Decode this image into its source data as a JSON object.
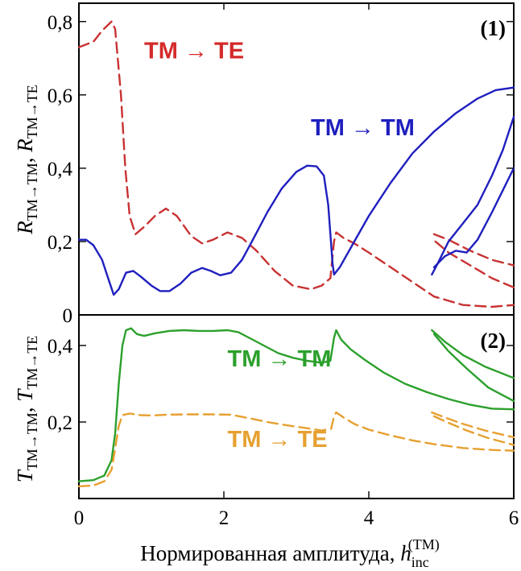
{
  "chart_data": [
    {
      "panel_label": "(1)",
      "type": "line",
      "ylabel": "R_TM→TM, R_TM→TE",
      "xlim": [
        0,
        6
      ],
      "ylim": [
        0,
        0.85
      ],
      "yticks": [
        "0",
        "0,2",
        "0,4",
        "0,6",
        "0,8"
      ],
      "ytick_values": [
        0,
        0.2,
        0.4,
        0.6,
        0.8
      ],
      "grid": false,
      "series": [
        {
          "name": "TM → TE",
          "color": "#c83232",
          "dash": "dashed",
          "label_pos": [
            0.9,
            0.7
          ],
          "label_color": "#d42a2a",
          "points": [
            [
              0.0,
              0.73
            ],
            [
              0.2,
              0.745
            ],
            [
              0.32,
              0.775
            ],
            [
              0.45,
              0.8
            ],
            [
              0.5,
              0.78
            ],
            [
              0.58,
              0.6
            ],
            [
              0.64,
              0.4
            ],
            [
              0.7,
              0.27
            ],
            [
              0.78,
              0.22
            ],
            [
              0.9,
              0.24
            ],
            [
              1.05,
              0.27
            ],
            [
              1.2,
              0.29
            ],
            [
              1.35,
              0.27
            ],
            [
              1.55,
              0.215
            ],
            [
              1.7,
              0.195
            ],
            [
              1.85,
              0.205
            ],
            [
              2.05,
              0.225
            ],
            [
              2.25,
              0.21
            ],
            [
              2.45,
              0.175
            ],
            [
              2.7,
              0.12
            ],
            [
              2.95,
              0.08
            ],
            [
              3.2,
              0.07
            ],
            [
              3.35,
              0.08
            ],
            [
              3.47,
              0.1
            ],
            [
              3.52,
              0.2
            ],
            [
              3.55,
              0.225
            ],
            [
              3.65,
              0.21
            ],
            [
              3.8,
              0.195
            ],
            [
              4.0,
              0.17
            ],
            [
              4.3,
              0.13
            ],
            [
              4.6,
              0.09
            ],
            [
              4.9,
              0.05
            ],
            [
              5.3,
              0.027
            ],
            [
              5.7,
              0.022
            ],
            [
              6.0,
              0.027
            ]
          ],
          "branches": [
            [
              [
                4.9,
                0.22
              ],
              [
                5.1,
                0.205
              ],
              [
                5.4,
                0.175
              ],
              [
                5.7,
                0.15
              ],
              [
                6.0,
                0.135
              ]
            ],
            [
              [
                4.92,
                0.2
              ],
              [
                5.1,
                0.17
              ],
              [
                5.4,
                0.135
              ],
              [
                5.7,
                0.1
              ],
              [
                6.0,
                0.075
              ]
            ]
          ]
        },
        {
          "name": "TM → TM",
          "color": "#1f1fbf",
          "dash": "solid",
          "label_pos": [
            3.2,
            0.49
          ],
          "label_color": "#1f1fbf",
          "points": [
            [
              0.0,
              0.205
            ],
            [
              0.1,
              0.205
            ],
            [
              0.2,
              0.19
            ],
            [
              0.32,
              0.15
            ],
            [
              0.42,
              0.09
            ],
            [
              0.48,
              0.055
            ],
            [
              0.55,
              0.07
            ],
            [
              0.65,
              0.115
            ],
            [
              0.75,
              0.12
            ],
            [
              0.85,
              0.105
            ],
            [
              1.0,
              0.08
            ],
            [
              1.12,
              0.065
            ],
            [
              1.25,
              0.065
            ],
            [
              1.4,
              0.085
            ],
            [
              1.55,
              0.115
            ],
            [
              1.7,
              0.128
            ],
            [
              1.82,
              0.12
            ],
            [
              1.95,
              0.108
            ],
            [
              2.1,
              0.115
            ],
            [
              2.25,
              0.15
            ],
            [
              2.4,
              0.205
            ],
            [
              2.6,
              0.28
            ],
            [
              2.8,
              0.345
            ],
            [
              3.0,
              0.39
            ],
            [
              3.15,
              0.407
            ],
            [
              3.28,
              0.405
            ],
            [
              3.38,
              0.38
            ],
            [
              3.44,
              0.3
            ],
            [
              3.47,
              0.22
            ],
            [
              3.5,
              0.14
            ],
            [
              3.52,
              0.11
            ],
            [
              3.6,
              0.13
            ],
            [
              3.8,
              0.2
            ],
            [
              4.0,
              0.27
            ],
            [
              4.3,
              0.36
            ],
            [
              4.6,
              0.44
            ],
            [
              4.9,
              0.5
            ],
            [
              5.2,
              0.55
            ],
            [
              5.5,
              0.59
            ],
            [
              5.75,
              0.613
            ],
            [
              6.0,
              0.62
            ]
          ],
          "branches": [
            [
              [
                4.87,
                0.11
              ],
              [
                4.95,
                0.14
              ],
              [
                5.1,
                0.2
              ],
              [
                5.3,
                0.25
              ],
              [
                5.5,
                0.3
              ],
              [
                5.7,
                0.38
              ],
              [
                5.85,
                0.45
              ],
              [
                6.0,
                0.54
              ]
            ],
            [
              [
                4.9,
                0.13
              ],
              [
                5.05,
                0.16
              ],
              [
                5.2,
                0.175
              ],
              [
                5.35,
                0.17
              ],
              [
                5.5,
                0.205
              ],
              [
                5.7,
                0.28
              ],
              [
                5.85,
                0.34
              ],
              [
                6.0,
                0.4
              ]
            ]
          ]
        }
      ]
    },
    {
      "panel_label": "(2)",
      "type": "line",
      "xlabel": "Нормированная амплитуда, h_inc^(TM)",
      "ylabel": "T_TM→TM, T_TM→TE",
      "xlim": [
        0,
        6
      ],
      "ylim": [
        0,
        0.48
      ],
      "xticks": [
        "0",
        "2",
        "4",
        "6"
      ],
      "xtick_values": [
        0,
        2,
        4,
        6
      ],
      "yticks": [
        "0,2",
        "0,4"
      ],
      "ytick_values": [
        0.2,
        0.4
      ],
      "grid": false,
      "series": [
        {
          "name": "TM → TM",
          "color": "#2ca02c",
          "dash": "solid",
          "label_pos": [
            2.05,
            0.345
          ],
          "label_color": "#2ca02c",
          "points": [
            [
              0.0,
              0.045
            ],
            [
              0.2,
              0.048
            ],
            [
              0.35,
              0.06
            ],
            [
              0.45,
              0.1
            ],
            [
              0.5,
              0.17
            ],
            [
              0.55,
              0.3
            ],
            [
              0.6,
              0.4
            ],
            [
              0.65,
              0.44
            ],
            [
              0.72,
              0.445
            ],
            [
              0.8,
              0.43
            ],
            [
              0.9,
              0.425
            ],
            [
              1.05,
              0.432
            ],
            [
              1.25,
              0.438
            ],
            [
              1.45,
              0.44
            ],
            [
              1.65,
              0.438
            ],
            [
              1.85,
              0.438
            ],
            [
              2.05,
              0.44
            ],
            [
              2.2,
              0.435
            ],
            [
              2.35,
              0.42
            ],
            [
              2.55,
              0.4
            ],
            [
              2.75,
              0.38
            ],
            [
              2.95,
              0.368
            ],
            [
              3.15,
              0.36
            ],
            [
              3.35,
              0.355
            ],
            [
              3.47,
              0.36
            ],
            [
              3.52,
              0.42
            ],
            [
              3.55,
              0.44
            ],
            [
              3.62,
              0.415
            ],
            [
              3.75,
              0.39
            ],
            [
              3.95,
              0.362
            ],
            [
              4.2,
              0.33
            ],
            [
              4.5,
              0.3
            ],
            [
              4.8,
              0.278
            ],
            [
              5.1,
              0.26
            ],
            [
              5.4,
              0.245
            ],
            [
              5.7,
              0.235
            ],
            [
              6.0,
              0.233
            ]
          ],
          "branches": [
            [
              [
                4.87,
                0.44
              ],
              [
                5.05,
                0.41
              ],
              [
                5.3,
                0.375
              ],
              [
                5.6,
                0.345
              ],
              [
                6.0,
                0.315
              ]
            ],
            [
              [
                4.9,
                0.43
              ],
              [
                5.1,
                0.385
              ],
              [
                5.35,
                0.34
              ],
              [
                5.65,
                0.29
              ],
              [
                6.0,
                0.255
              ]
            ]
          ]
        },
        {
          "name": "TM → TE",
          "color": "#e6a030",
          "dash": "dashed",
          "label_pos": [
            2.05,
            0.135
          ],
          "label_color": "#e6a030",
          "points": [
            [
              0.0,
              0.032
            ],
            [
              0.2,
              0.034
            ],
            [
              0.35,
              0.045
            ],
            [
              0.45,
              0.075
            ],
            [
              0.5,
              0.13
            ],
            [
              0.55,
              0.19
            ],
            [
              0.6,
              0.218
            ],
            [
              0.7,
              0.222
            ],
            [
              0.85,
              0.218
            ],
            [
              1.0,
              0.217
            ],
            [
              1.2,
              0.219
            ],
            [
              1.5,
              0.22
            ],
            [
              1.8,
              0.22
            ],
            [
              2.1,
              0.219
            ],
            [
              2.35,
              0.21
            ],
            [
              2.6,
              0.2
            ],
            [
              2.85,
              0.192
            ],
            [
              3.1,
              0.185
            ],
            [
              3.35,
              0.178
            ],
            [
              3.48,
              0.182
            ],
            [
              3.52,
              0.215
            ],
            [
              3.55,
              0.225
            ],
            [
              3.65,
              0.212
            ],
            [
              3.8,
              0.195
            ],
            [
              4.0,
              0.18
            ],
            [
              4.3,
              0.165
            ],
            [
              4.6,
              0.152
            ],
            [
              4.9,
              0.142
            ],
            [
              5.3,
              0.132
            ],
            [
              5.7,
              0.127
            ],
            [
              6.0,
              0.125
            ]
          ],
          "branches": [
            [
              [
                4.87,
                0.225
              ],
              [
                5.05,
                0.212
              ],
              [
                5.3,
                0.195
              ],
              [
                5.6,
                0.178
              ],
              [
                6.0,
                0.16
              ]
            ],
            [
              [
                4.9,
                0.215
              ],
              [
                5.1,
                0.198
              ],
              [
                5.35,
                0.178
              ],
              [
                5.65,
                0.158
              ],
              [
                6.0,
                0.14
              ]
            ]
          ]
        }
      ]
    }
  ]
}
